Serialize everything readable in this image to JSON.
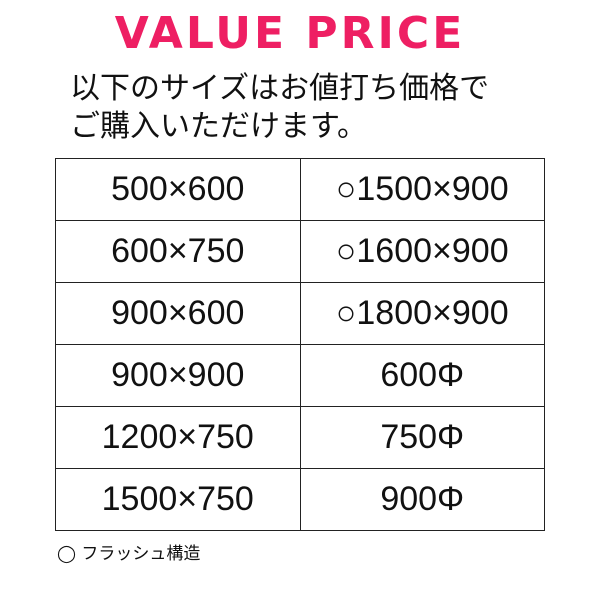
{
  "accent_color": "#EE1F63",
  "title": "VALUE PRICE",
  "intro": [
    "以下のサイズはお値打ち価格で",
    "ご購入いただけます。"
  ],
  "table": {
    "rows": [
      [
        "500×600",
        "○1500×900"
      ],
      [
        "600×750",
        "○1600×900"
      ],
      [
        "900×600",
        "○1800×900"
      ],
      [
        "900×900",
        "600Φ"
      ],
      [
        "1200×750",
        "750Φ"
      ],
      [
        "1500×750",
        "900Φ"
      ]
    ]
  },
  "note": "◯ フラッシュ構造"
}
